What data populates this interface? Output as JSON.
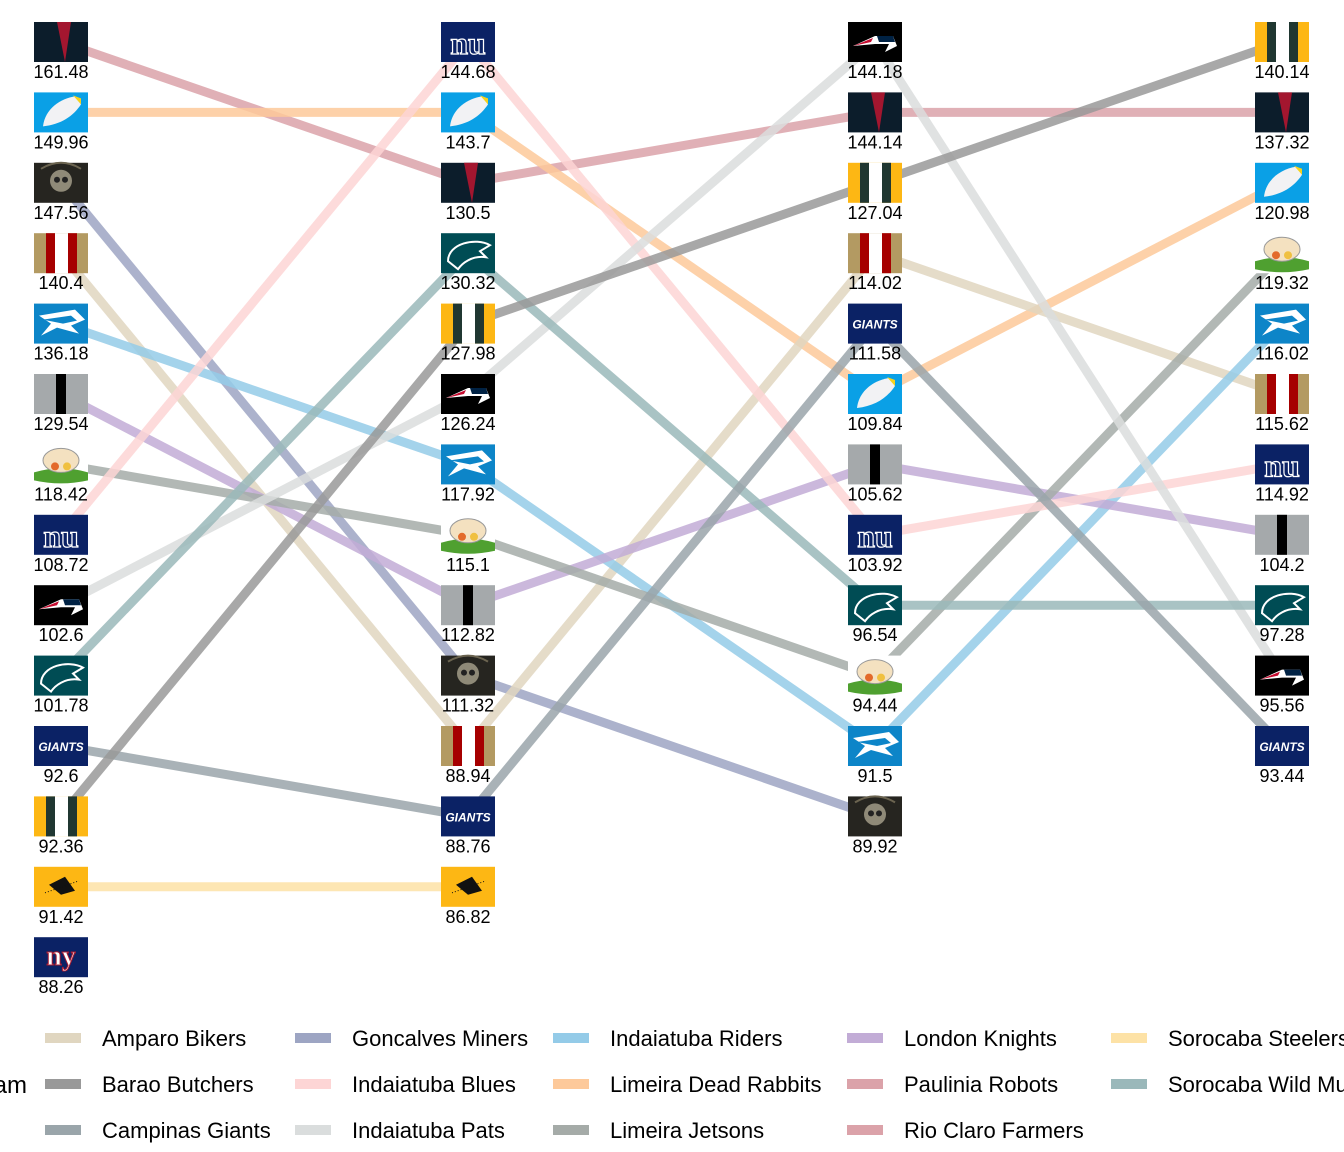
{
  "chart_data": {
    "type": "bump",
    "legend_title": "Team",
    "legend_position": "bottom",
    "grid": false,
    "columns": 4,
    "series": [
      {
        "name": "Rio Claro Farmers",
        "color": "#dba2a9",
        "logo": "red-wedge",
        "values": [
          161.48,
          130.5,
          144.14,
          137.32
        ]
      },
      {
        "name": "Limeira Dead Rabbits",
        "color": "#fdc99a",
        "logo": "feather",
        "values": [
          149.96,
          143.7,
          109.84,
          120.98
        ]
      },
      {
        "name": "Goncalves Miners",
        "color": "#9da5c3",
        "logo": "skull",
        "values": [
          147.56,
          111.32,
          89.92,
          null
        ]
      },
      {
        "name": "Amparo Bikers",
        "color": "#e0d6c0",
        "logo": "gold-red-stripes",
        "values": [
          140.4,
          88.94,
          114.02,
          115.62
        ]
      },
      {
        "name": "Indaiatuba Riders",
        "color": "#94cbe8",
        "logo": "panther",
        "values": [
          136.18,
          117.92,
          91.5,
          116.02
        ]
      },
      {
        "name": "London Knights",
        "color": "#c2acd6",
        "logo": "gray-black-stripe",
        "values": [
          129.54,
          112.82,
          105.62,
          104.2
        ]
      },
      {
        "name": "Limeira Jetsons",
        "color": "#a5aba8",
        "logo": "cartoon",
        "values": [
          118.42,
          115.1,
          94.44,
          119.32
        ]
      },
      {
        "name": "Indaiatuba Blues",
        "color": "#fdd5d5",
        "logo": "nu",
        "values": [
          108.72,
          144.68,
          103.92,
          114.92
        ]
      },
      {
        "name": "Indaiatuba Pats",
        "color": "#dadddd",
        "logo": "patriot",
        "values": [
          102.6,
          126.24,
          144.18,
          95.56
        ]
      },
      {
        "name": "Sorocaba Wild Mustangs",
        "color": "#9ab8ba",
        "logo": "eagle",
        "values": [
          101.78,
          130.32,
          96.54,
          97.28
        ]
      },
      {
        "name": "Campinas Giants",
        "color": "#9aa5aa",
        "logo": "giants",
        "values": [
          92.6,
          88.76,
          111.58,
          93.44
        ]
      },
      {
        "name": "Barao Butchers",
        "color": "#999999",
        "logo": "green-gold-stripes",
        "values": [
          92.36,
          127.98,
          127.04,
          140.14
        ]
      },
      {
        "name": "Sorocaba Steelers",
        "color": "#fde2a6",
        "logo": "steeler",
        "values": [
          91.42,
          86.82,
          null,
          null
        ]
      },
      {
        "name": "Paulinia Robots",
        "color": "#dba2a9",
        "logo": "ny",
        "values": [
          88.26,
          null,
          null,
          null
        ]
      }
    ],
    "legend_order": [
      "Amparo Bikers",
      "Barao Butchers",
      "Campinas Giants",
      "Goncalves Miners",
      "Indaiatuba Blues",
      "Indaiatuba Pats",
      "Indaiatuba Riders",
      "Limeira Dead Rabbits",
      "Limeira Jetsons",
      "London Knights",
      "Paulinia Robots",
      "Rio Claro Farmers",
      "Sorocaba Steelers",
      "Sorocaba Wild Mustangs"
    ]
  }
}
